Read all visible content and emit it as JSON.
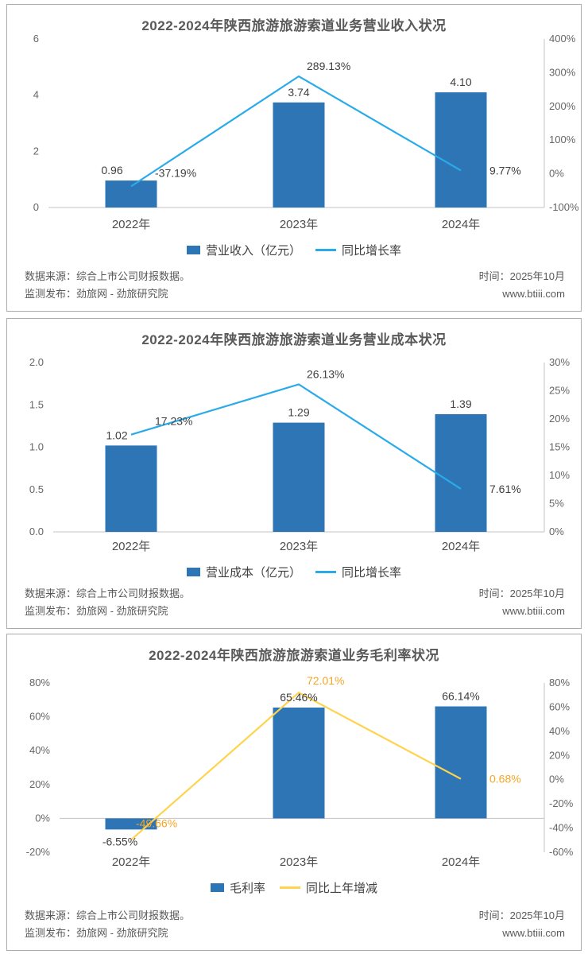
{
  "footer": {
    "source": "数据来源：综合上市公司财报数据。",
    "publisher": "监测发布：劲旅网 - 劲旅研究院",
    "time": "时间：2025年10月",
    "site": "www.btiii.com"
  },
  "chart_data": [
    {
      "type": "bar",
      "title": "2022-2024年陕西旅游旅游索道业务营业收入状况",
      "categories": [
        "2022年",
        "2023年",
        "2024年"
      ],
      "series": [
        {
          "name": "营业收入（亿元）",
          "type": "bar",
          "axis": "left",
          "values": [
            0.96,
            3.74,
            4.1
          ],
          "labels": [
            "0.96",
            "3.74",
            "4.10"
          ]
        },
        {
          "name": "同比增长率",
          "type": "line",
          "axis": "right",
          "values": [
            -37.19,
            289.13,
            9.77
          ],
          "labels": [
            "-37.19%",
            "289.13%",
            "9.77%"
          ]
        }
      ],
      "left_axis": {
        "min": 0,
        "max": 6,
        "ticks": [
          "6",
          "4",
          "2",
          "0"
        ]
      },
      "right_axis": {
        "min": -100,
        "max": 400,
        "ticks": [
          "400%",
          "300%",
          "200%",
          "100%",
          "0%",
          "-100%"
        ]
      },
      "legend": {
        "bar": "营业收入（亿元）",
        "line": "同比增长率"
      },
      "colors": {
        "bar": "#2e75b6",
        "line": "#29abe9",
        "line_label": "#404040"
      },
      "grid": "off",
      "legend_position": "bottom"
    },
    {
      "type": "bar",
      "title": "2022-2024年陕西旅游旅游索道业务营业成本状况",
      "categories": [
        "2022年",
        "2023年",
        "2024年"
      ],
      "series": [
        {
          "name": "营业成本（亿元）",
          "type": "bar",
          "axis": "left",
          "values": [
            1.02,
            1.29,
            1.39
          ],
          "labels": [
            "1.02",
            "1.29",
            "1.39"
          ]
        },
        {
          "name": "同比增长率",
          "type": "line",
          "axis": "right",
          "values": [
            17.23,
            26.13,
            7.61
          ],
          "labels": [
            "17.23%",
            "26.13%",
            "7.61%"
          ]
        }
      ],
      "left_axis": {
        "min": 0,
        "max": 2,
        "ticks": [
          "2.0",
          "1.5",
          "1.0",
          "0.5",
          "0.0"
        ]
      },
      "right_axis": {
        "min": 0,
        "max": 30,
        "ticks": [
          "30%",
          "25%",
          "20%",
          "15%",
          "10%",
          "5%",
          "0%"
        ]
      },
      "legend": {
        "bar": "营业成本（亿元）",
        "line": "同比增长率"
      },
      "colors": {
        "bar": "#2e75b6",
        "line": "#29abe9",
        "line_label": "#404040"
      },
      "grid": "off",
      "legend_position": "bottom"
    },
    {
      "type": "bar",
      "title": "2022-2024年陕西旅游旅游索道业务毛利率状况",
      "categories": [
        "2022年",
        "2023年",
        "2024年"
      ],
      "series": [
        {
          "name": "毛利率",
          "type": "bar",
          "axis": "left",
          "values": [
            -6.55,
            65.46,
            66.14
          ],
          "labels": [
            "-6.55%",
            "65.46%",
            "66.14%"
          ]
        },
        {
          "name": "同比上年增减",
          "type": "line",
          "axis": "right",
          "values": [
            -49.66,
            72.01,
            0.68
          ],
          "labels": [
            "-49.66%",
            "72.01%",
            "0.68%"
          ]
        }
      ],
      "left_axis": {
        "min": -20,
        "max": 80,
        "ticks": [
          "80%",
          "60%",
          "40%",
          "20%",
          "0%",
          "-20%"
        ]
      },
      "right_axis": {
        "min": -60,
        "max": 80,
        "ticks": [
          "80%",
          "60%",
          "40%",
          "20%",
          "0%",
          "-20%",
          "-40%",
          "-60%"
        ]
      },
      "legend": {
        "bar": "毛利率",
        "line": "同比上年增减"
      },
      "colors": {
        "bar": "#2e75b6",
        "line": "#ffd34d",
        "line_label": "#f5a623"
      },
      "grid": "off",
      "legend_position": "bottom"
    }
  ]
}
